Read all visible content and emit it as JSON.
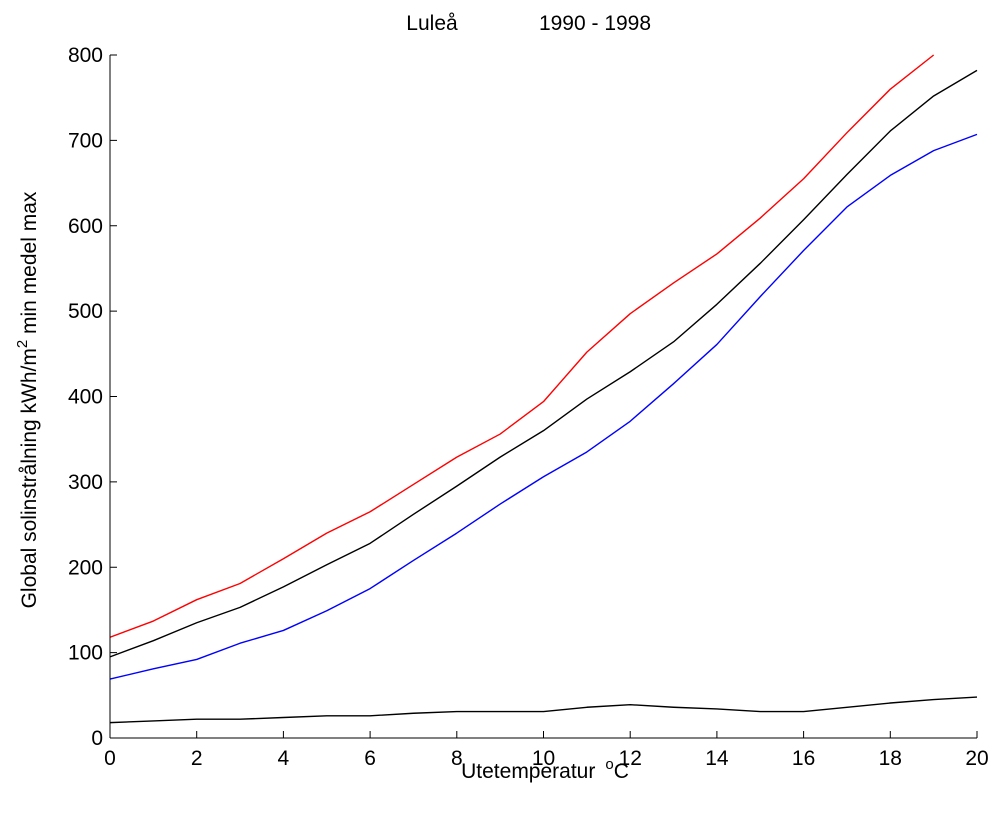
{
  "chart_data": {
    "type": "line",
    "title": {
      "place": "Luleå",
      "period": "1990 - 1998"
    },
    "xlabel": {
      "text": "Utetemperatur",
      "unit_sup": "o",
      "unit": "C"
    },
    "ylabel": {
      "text": "Global solinstrålning  kWh/m",
      "sup": "2",
      "rest": "  min medel max"
    },
    "xlim": [
      0,
      20
    ],
    "ylim": [
      0,
      800
    ],
    "xticks": [
      0,
      2,
      4,
      6,
      8,
      10,
      12,
      14,
      16,
      18,
      20
    ],
    "yticks": [
      0,
      100,
      200,
      300,
      400,
      500,
      600,
      700,
      800
    ],
    "grid": false,
    "x": [
      0,
      1,
      2,
      3,
      4,
      5,
      6,
      7,
      8,
      9,
      10,
      11,
      12,
      13,
      14,
      15,
      16,
      17,
      18,
      19,
      20
    ],
    "series": [
      {
        "color": "#ff0000",
        "values": [
          118,
          137,
          162,
          181,
          210,
          240,
          265,
          297,
          329,
          356,
          394,
          452,
          497,
          533,
          567,
          609,
          655,
          709,
          760,
          800,
          null
        ]
      },
      {
        "color": "#000000",
        "values": [
          95,
          114,
          135,
          153,
          177,
          203,
          228,
          262,
          295,
          329,
          360,
          397,
          429,
          464,
          508,
          556,
          607,
          660,
          711,
          752,
          782
        ]
      },
      {
        "color": "#0000ff",
        "values": [
          69,
          81,
          92,
          111,
          126,
          149,
          175,
          208,
          240,
          274,
          306,
          335,
          371,
          415,
          461,
          517,
          571,
          622,
          659,
          688,
          707
        ]
      },
      {
        "color": "#000000",
        "values": [
          18,
          20,
          22,
          22,
          24,
          26,
          26,
          29,
          31,
          31,
          31,
          36,
          39,
          36,
          34,
          31,
          31,
          36,
          41,
          45,
          48
        ]
      }
    ]
  }
}
